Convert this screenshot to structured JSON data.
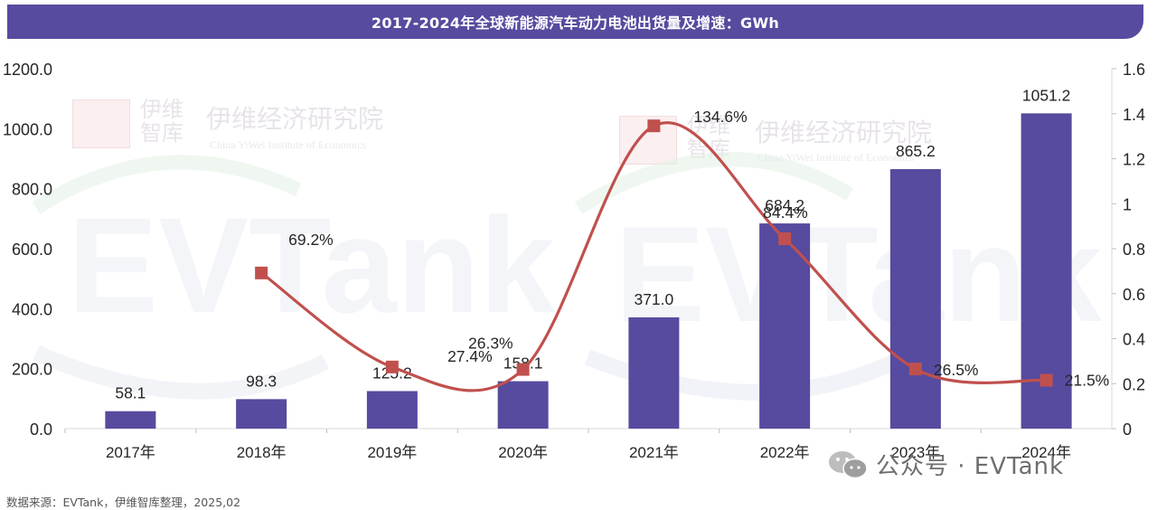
{
  "title": "2017-2024年全球新能源汽车动力电池出货量及增速：GWh",
  "source": "数据来源：EVTank，伊维智库整理，2025,02",
  "watermark": {
    "brand_cn": "伊维经济研究院",
    "brand_short": "伊维智库",
    "brand_en": "China YiWei Institute of Economics",
    "logo": "EVTank"
  },
  "wechat": {
    "icon": "wechat-icon",
    "label": "公众号 · EVTank"
  },
  "colors": {
    "bar": "#564b9f",
    "line": "#c0504d",
    "marker": "#c0504d",
    "title_bg": "#564b9f"
  },
  "chart_data": {
    "type": "bar",
    "categories": [
      "2017年",
      "2018年",
      "2019年",
      "2020年",
      "2021年",
      "2022年",
      "2023年",
      "2024年"
    ],
    "series": [
      {
        "type": "bar",
        "axis": "left",
        "values": [
          58.1,
          98.3,
          125.2,
          158.1,
          371.0,
          684.2,
          865.2,
          1051.2
        ],
        "labels": [
          "58.1",
          "98.3",
          "125.2",
          "158.1",
          "371.0",
          "684.2",
          "865.2",
          "1051.2"
        ]
      },
      {
        "type": "line",
        "axis": "right",
        "smooth": true,
        "values": [
          null,
          0.692,
          0.274,
          0.263,
          1.346,
          0.844,
          0.265,
          0.215
        ],
        "labels": [
          "",
          "69.2%",
          "27.4%",
          "26.3%",
          "134.6%",
          "84.4%",
          "26.5%",
          "21.5%"
        ]
      }
    ],
    "left_axis": {
      "min": 0,
      "max": 1200,
      "ticks": [
        "0.0",
        "200.0",
        "400.0",
        "600.0",
        "800.0",
        "1000.0",
        "1200.0"
      ]
    },
    "right_axis": {
      "min": 0,
      "max": 1.6,
      "ticks": [
        "0",
        "0.2",
        "0.4",
        "0.6",
        "0.8",
        "1",
        "1.2",
        "1.4",
        "1.6"
      ]
    },
    "grid": false,
    "legend": "none"
  }
}
